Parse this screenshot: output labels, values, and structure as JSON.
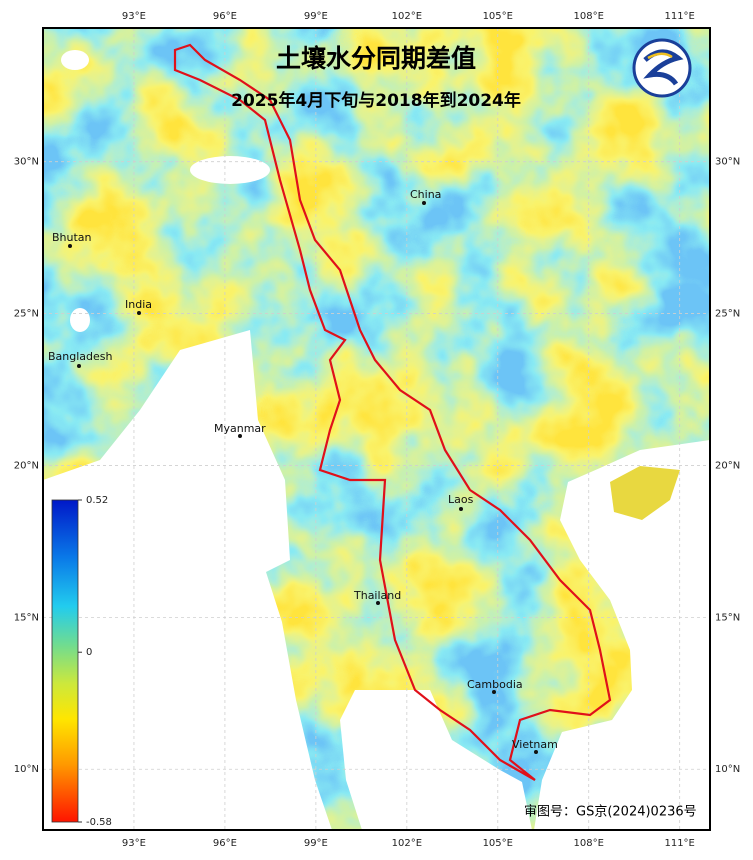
{
  "map": {
    "title": "土壤水分同期差值",
    "subtitle": "2025年4月下旬与2018年到2024年",
    "lonlim": [
      90,
      112
    ],
    "latlim": [
      8,
      34.4
    ],
    "lon_ticks": [
      {
        "value": 93,
        "label": "93°E"
      },
      {
        "value": 96,
        "label": "96°E"
      },
      {
        "value": 99,
        "label": "99°E"
      },
      {
        "value": 102,
        "label": "102°E"
      },
      {
        "value": 105,
        "label": "105°E"
      },
      {
        "value": 108,
        "label": "108°E"
      },
      {
        "value": 111,
        "label": "111°E"
      }
    ],
    "lat_ticks": [
      {
        "value": 10,
        "label": "10°N"
      },
      {
        "value": 15,
        "label": "15°N"
      },
      {
        "value": 20,
        "label": "20°N"
      },
      {
        "value": 25,
        "label": "25°N"
      },
      {
        "value": 30,
        "label": "30°N"
      }
    ],
    "places": [
      "China",
      "Bhutan",
      "India",
      "Bangladesh",
      "Myanmar",
      "Laos",
      "Thailand",
      "Cambodia",
      "Vietnam"
    ],
    "colorbar": {
      "lim": [
        -0.58,
        0.52
      ],
      "ticks": [
        0.52,
        0,
        -0.58
      ]
    },
    "approval": "审图号：GS京(2024)0236号"
  }
}
